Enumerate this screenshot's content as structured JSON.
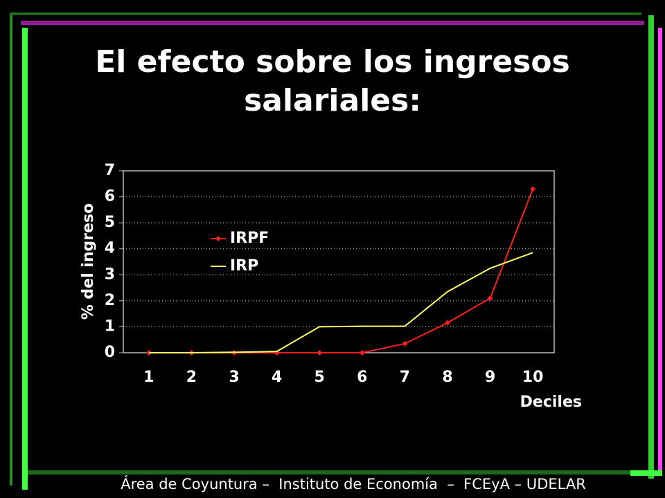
{
  "chart_data": {
    "type": "line",
    "title": "El efecto sobre los ingresos salariales:",
    "x_label": "Deciles",
    "y_label": "% del ingreso",
    "categories": [
      "1",
      "2",
      "3",
      "4",
      "5",
      "6",
      "7",
      "8",
      "9",
      "10"
    ],
    "series": [
      {
        "name": "IRPF",
        "color": "#ff2020",
        "marker": "diamond",
        "values": [
          0,
          0,
          0,
          0,
          0,
          0,
          0.35,
          1.15,
          2.1,
          6.3
        ]
      },
      {
        "name": "IRP",
        "color": "#ffff66",
        "values": [
          0,
          0,
          0.02,
          0.05,
          1.0,
          1.02,
          1.02,
          2.35,
          3.25,
          3.85
        ]
      }
    ],
    "ylim": [
      0,
      7
    ],
    "yticks": [
      0,
      1,
      2,
      3,
      4,
      5,
      6,
      7
    ],
    "grid": true
  },
  "footer": "Área de Coyuntura –  Instituto de Economía  –  FCEyA – UDELAR"
}
